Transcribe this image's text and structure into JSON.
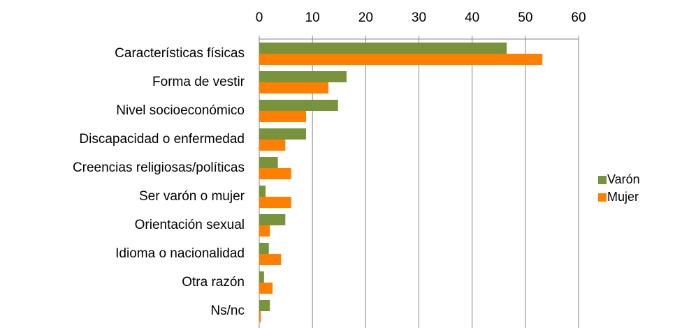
{
  "chart_data": {
    "type": "bar",
    "orientation": "horizontal",
    "categories": [
      "Características físicas",
      "Forma de vestir",
      "Nivel socioeconómico",
      "Discapacidad  o enfermedad",
      "Creencias religiosas/políticas",
      "Ser varón o mujer",
      "Orientación sexual",
      "Idioma o nacionalidad",
      "Otra razón",
      "Ns/nc"
    ],
    "series": [
      {
        "name": "Varón",
        "color": "#77933c",
        "values": [
          46.5,
          16.4,
          14.8,
          8.8,
          3.5,
          1.2,
          4.9,
          1.8,
          0.9,
          2.0
        ]
      },
      {
        "name": "Mujer",
        "color": "#ff8000",
        "values": [
          53.2,
          13.0,
          8.8,
          4.9,
          6.0,
          6.0,
          2.0,
          4.1,
          2.5,
          0.3
        ]
      }
    ],
    "xlim": [
      0,
      60
    ],
    "xticks": [
      0,
      10,
      20,
      30,
      40,
      50,
      60
    ],
    "grid": true,
    "legend": "right"
  }
}
